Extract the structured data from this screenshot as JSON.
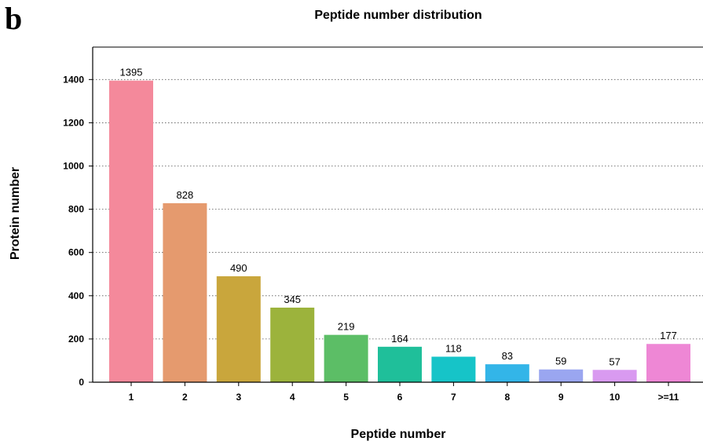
{
  "panel_letter": "b",
  "chart_data": {
    "type": "bar",
    "title": "Peptide number distribution",
    "xlabel": "Peptide number",
    "ylabel": "Protein number",
    "categories": [
      "1",
      "2",
      "3",
      "4",
      "5",
      "6",
      "7",
      "8",
      "9",
      "10",
      ">=11"
    ],
    "values": [
      1395,
      828,
      490,
      345,
      219,
      164,
      118,
      83,
      59,
      57,
      177
    ],
    "data_labels": [
      "1395",
      "828",
      "490",
      "345",
      "219",
      "164",
      "118",
      "83",
      "59",
      "57",
      "177"
    ],
    "ylim": [
      0,
      1550
    ],
    "yticks": [
      0,
      200,
      400,
      600,
      800,
      1000,
      1200,
      1400
    ],
    "ytick_labels": [
      "0",
      "200",
      "400",
      "600",
      "800",
      "1000",
      "1200",
      "1400"
    ],
    "grid": "horizontal dotted",
    "colors": [
      "#f4899b",
      "#e59a6e",
      "#c9a63c",
      "#9cb33c",
      "#5cbe66",
      "#1fbf9a",
      "#16c4c8",
      "#33b5e8",
      "#9aa6f0",
      "#d99af0",
      "#ee87d5"
    ]
  }
}
